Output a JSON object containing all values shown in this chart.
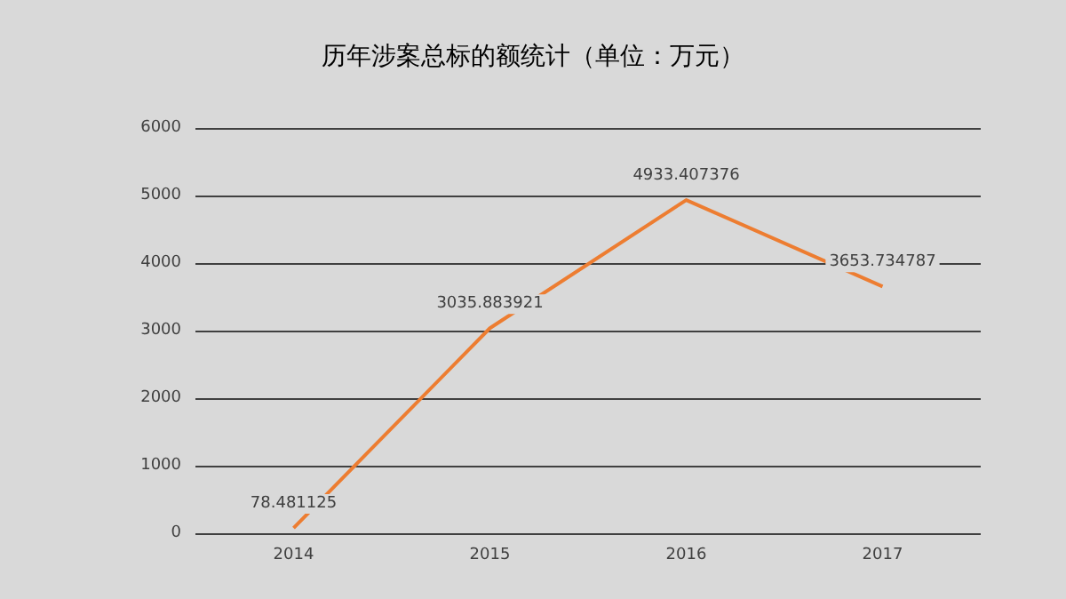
{
  "chart_data": {
    "type": "line",
    "title": "历年涉案总标的额统计（单位：万元）",
    "categories": [
      "2014",
      "2015",
      "2016",
      "2017"
    ],
    "series": [
      {
        "color": "#ed7d31",
        "values": [
          78.481125,
          3035.883921,
          4933.407376,
          3653.734787
        ]
      }
    ],
    "ylim": [
      0,
      6000
    ],
    "yticks": [
      0,
      1000,
      2000,
      3000,
      4000,
      5000,
      6000
    ],
    "grid": "y",
    "data_labels": true,
    "marker": "none",
    "line_style": "solid"
  }
}
